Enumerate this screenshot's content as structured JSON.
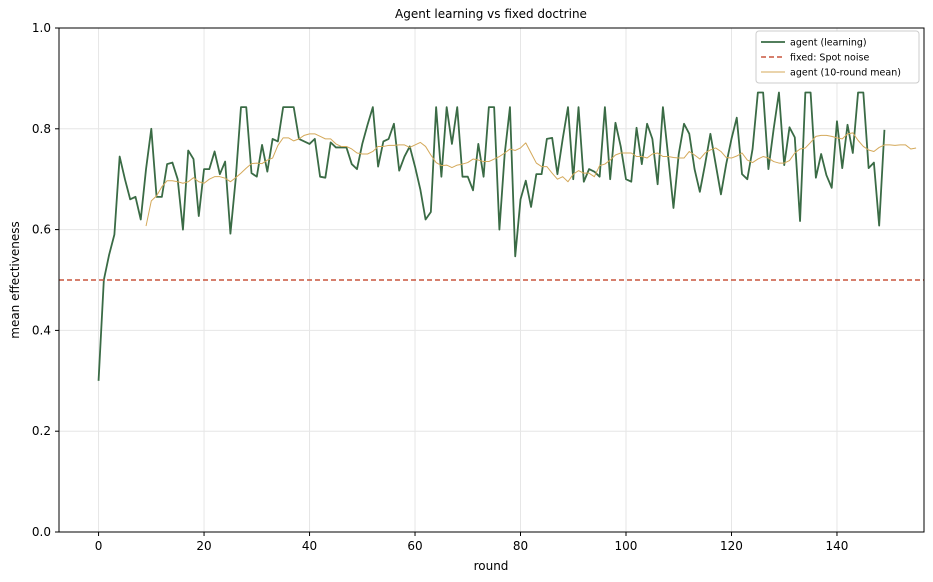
{
  "chart_data": {
    "type": "line",
    "title": "Agent learning vs fixed doctrine",
    "xlabel": "round",
    "ylabel": "mean effectiveness",
    "xlim": [
      -7.5,
      156.5
    ],
    "ylim": [
      0,
      1
    ],
    "xticks": [
      0,
      20,
      40,
      60,
      80,
      100,
      120,
      140
    ],
    "yticks": [
      0.0,
      0.2,
      0.4,
      0.6,
      0.8,
      1.0
    ],
    "xtick_labels": [
      "0",
      "20",
      "40",
      "60",
      "80",
      "100",
      "120",
      "140"
    ],
    "ytick_labels": [
      "0.0",
      "0.2",
      "0.4",
      "0.6",
      "0.8",
      "1.0"
    ],
    "grid": true,
    "legend_position": "top-right",
    "series": [
      {
        "name": "agent (learning)",
        "color": "#3a6b45",
        "style": "solid",
        "x_start": 0,
        "values": [
          0.3,
          0.5,
          0.55,
          0.59,
          0.745,
          0.7,
          0.66,
          0.665,
          0.62,
          0.72,
          0.8,
          0.665,
          0.665,
          0.73,
          0.733,
          0.7,
          0.6,
          0.757,
          0.74,
          0.627,
          0.72,
          0.72,
          0.755,
          0.71,
          0.735,
          0.592,
          0.7,
          0.843,
          0.843,
          0.712,
          0.705,
          0.768,
          0.715,
          0.78,
          0.775,
          0.843,
          0.843,
          0.843,
          0.78,
          0.775,
          0.77,
          0.78,
          0.705,
          0.703,
          0.773,
          0.763,
          0.763,
          0.763,
          0.73,
          0.72,
          0.77,
          0.808,
          0.843,
          0.725,
          0.775,
          0.78,
          0.81,
          0.717,
          0.745,
          0.765,
          0.725,
          0.68,
          0.62,
          0.635,
          0.843,
          0.705,
          0.843,
          0.77,
          0.843,
          0.705,
          0.705,
          0.678,
          0.77,
          0.705,
          0.843,
          0.843,
          0.6,
          0.75,
          0.843,
          0.547,
          0.66,
          0.697,
          0.645,
          0.71,
          0.71,
          0.78,
          0.782,
          0.71,
          0.78,
          0.843,
          0.7,
          0.843,
          0.695,
          0.72,
          0.715,
          0.705,
          0.843,
          0.7,
          0.812,
          0.765,
          0.7,
          0.695,
          0.802,
          0.73,
          0.81,
          0.78,
          0.69,
          0.843,
          0.745,
          0.643,
          0.75,
          0.81,
          0.79,
          0.72,
          0.675,
          0.73,
          0.79,
          0.73,
          0.67,
          0.73,
          0.78,
          0.822,
          0.71,
          0.7,
          0.76,
          0.872,
          0.872,
          0.72,
          0.8,
          0.872,
          0.728,
          0.803,
          0.783,
          0.617,
          0.872,
          0.872,
          0.703,
          0.75,
          0.708,
          0.683,
          0.815,
          0.722,
          0.808,
          0.752,
          0.872,
          0.872,
          0.722,
          0.733,
          0.608,
          0.798
        ]
      },
      {
        "name": "fixed: Spot noise",
        "color": "#c8553d",
        "style": "dashed",
        "constant": 0.5
      },
      {
        "name": "agent (10-round mean)",
        "color": "#d4a95a",
        "style": "solid",
        "x_start": 9,
        "values": [
          0.607,
          0.657,
          0.667,
          0.685,
          0.697,
          0.697,
          0.695,
          0.692,
          0.695,
          0.703,
          0.695,
          0.692,
          0.7,
          0.705,
          0.705,
          0.702,
          0.695,
          0.703,
          0.712,
          0.722,
          0.731,
          0.732,
          0.731,
          0.738,
          0.742,
          0.767,
          0.782,
          0.782,
          0.776,
          0.78,
          0.787,
          0.79,
          0.79,
          0.785,
          0.78,
          0.78,
          0.77,
          0.765,
          0.765,
          0.76,
          0.752,
          0.75,
          0.75,
          0.755,
          0.765,
          0.765,
          0.767,
          0.767,
          0.768,
          0.768,
          0.763,
          0.768,
          0.773,
          0.765,
          0.748,
          0.733,
          0.727,
          0.728,
          0.723,
          0.728,
          0.73,
          0.733,
          0.74,
          0.738,
          0.735,
          0.735,
          0.74,
          0.745,
          0.752,
          0.76,
          0.757,
          0.762,
          0.772,
          0.752,
          0.732,
          0.725,
          0.725,
          0.712,
          0.7,
          0.705,
          0.695,
          0.71,
          0.717,
          0.712,
          0.712,
          0.705,
          0.727,
          0.73,
          0.738,
          0.748,
          0.752,
          0.752,
          0.752,
          0.745,
          0.745,
          0.742,
          0.75,
          0.752,
          0.745,
          0.745,
          0.743,
          0.742,
          0.742,
          0.755,
          0.748,
          0.74,
          0.752,
          0.758,
          0.762,
          0.755,
          0.743,
          0.742,
          0.746,
          0.752,
          0.738,
          0.733,
          0.74,
          0.745,
          0.742,
          0.735,
          0.732,
          0.732,
          0.737,
          0.752,
          0.76,
          0.762,
          0.773,
          0.785,
          0.787,
          0.787,
          0.785,
          0.782,
          0.78,
          0.79,
          0.792,
          0.777,
          0.765,
          0.758,
          0.755,
          0.763,
          0.768,
          0.768,
          0.767,
          0.768,
          0.768,
          0.76,
          0.762
        ]
      }
    ]
  }
}
